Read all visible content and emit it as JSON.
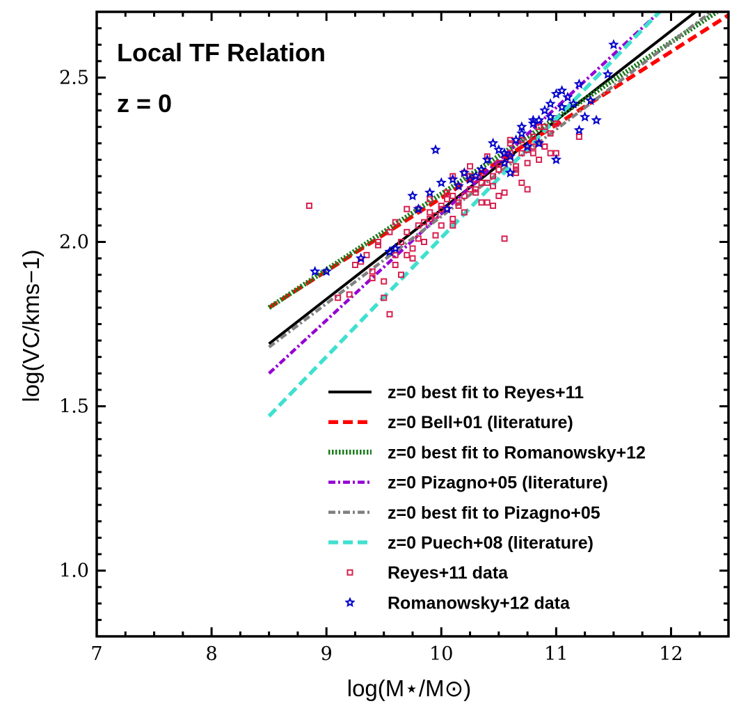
{
  "chart_data": {
    "type": "scatter",
    "title": "Local TF Relation",
    "subtitle": "z = 0",
    "xlabel": "log(M⋆/M⊙)",
    "ylabel": "log(VC/kms−1)",
    "xlim": [
      7,
      12.5
    ],
    "ylim": [
      0.8,
      2.7
    ],
    "xticks": [
      7,
      8,
      9,
      10,
      11,
      12
    ],
    "yticks": [
      1.0,
      1.5,
      2.0,
      2.5
    ],
    "xtick_labels": [
      "7",
      "8",
      "9",
      "10",
      "11",
      "12"
    ],
    "ytick_labels": [
      "1.0",
      "1.5",
      "2.0",
      "2.5"
    ],
    "legend_position": "lower-right",
    "lines": [
      {
        "name": "z=0 best fit to Reyes+11",
        "color": "#000000",
        "style": "solid",
        "x": [
          8.5,
          12.25
        ],
        "y": [
          1.69,
          2.71
        ]
      },
      {
        "name": "z=0 Bell+01 (literature)",
        "color": "#ff0000",
        "style": "dashed",
        "x": [
          8.5,
          12.5
        ],
        "y": [
          1.8,
          2.69
        ]
      },
      {
        "name": "z=0 best fit to Romanowsky+12",
        "color": "#1a7a1a",
        "style": "dotted",
        "x": [
          8.5,
          12.4
        ],
        "y": [
          1.8,
          2.7
        ]
      },
      {
        "name": "z=0 Pizagno+05 (literature)",
        "color": "#9400d3",
        "style": "dashdot",
        "x": [
          8.5,
          11.9
        ],
        "y": [
          1.6,
          2.7
        ]
      },
      {
        "name": "z=0 best fit to Pizagno+05",
        "color": "#808080",
        "style": "dashdot",
        "x": [
          8.5,
          12.35
        ],
        "y": [
          1.68,
          2.7
        ]
      },
      {
        "name": "z=0 Puech+08 (literature)",
        "color": "#40e0d0",
        "style": "dashed",
        "x": [
          8.5,
          11.9
        ],
        "y": [
          1.47,
          2.7
        ]
      }
    ],
    "series": [
      {
        "name": "Reyes+11 data",
        "marker": "square",
        "color": "#d6204f",
        "x": [
          8.85,
          9.1,
          9.2,
          9.3,
          9.4,
          9.5,
          9.55,
          9.6,
          9.65,
          9.7,
          9.75,
          9.8,
          9.85,
          9.9,
          9.95,
          10.0,
          10.05,
          10.1,
          10.15,
          10.2,
          10.25,
          10.3,
          10.35,
          10.4,
          10.45,
          10.5,
          10.55,
          10.6,
          10.65,
          10.7,
          10.75,
          10.8,
          10.85,
          10.9,
          10.95,
          11.0,
          9.35,
          9.45,
          9.6,
          9.7,
          9.8,
          9.9,
          10.0,
          10.1,
          10.2,
          10.3,
          10.4,
          10.5,
          10.6,
          10.7,
          10.8,
          10.9,
          9.5,
          9.75,
          9.95,
          10.15,
          10.35,
          10.55,
          10.75,
          9.65,
          9.85,
          10.05,
          10.25,
          10.45,
          10.65,
          10.85,
          10.0,
          10.2,
          10.4,
          10.6,
          10.8,
          11.2,
          9.4,
          9.6,
          10.1,
          10.3,
          10.5,
          10.7,
          10.9,
          9.55,
          9.9,
          10.1,
          10.35,
          10.6,
          10.75,
          10.95,
          9.8,
          10.25,
          10.5,
          9.7,
          10.05,
          10.45,
          10.85,
          9.25,
          9.45,
          10.15,
          10.55,
          10.65,
          11.0
        ],
        "y": [
          2.11,
          1.83,
          1.84,
          1.94,
          1.89,
          1.83,
          1.78,
          1.96,
          1.9,
          2.1,
          1.95,
          2.05,
          2.0,
          2.07,
          2.02,
          2.1,
          2.13,
          2.05,
          2.17,
          2.14,
          2.2,
          2.16,
          2.21,
          2.12,
          2.17,
          2.24,
          2.15,
          2.27,
          2.22,
          2.31,
          2.24,
          2.27,
          2.35,
          2.29,
          2.33,
          2.36,
          1.96,
          1.99,
          2.06,
          2.03,
          2.1,
          2.13,
          2.11,
          2.14,
          2.21,
          2.19,
          2.26,
          2.22,
          2.3,
          2.27,
          2.32,
          2.35,
          1.88,
          1.98,
          2.08,
          2.12,
          2.18,
          2.24,
          2.28,
          2.0,
          2.06,
          2.1,
          2.16,
          2.2,
          2.23,
          2.3,
          2.05,
          2.09,
          2.18,
          2.25,
          2.29,
          2.32,
          1.91,
          1.93,
          2.07,
          2.15,
          2.22,
          2.18,
          2.29,
          2.03,
          2.09,
          2.2,
          2.12,
          2.31,
          2.16,
          2.27,
          2.01,
          2.23,
          2.14,
          1.96,
          2.15,
          2.11,
          2.25,
          1.93,
          2.0,
          2.11,
          2.01,
          2.21,
          2.27
        ]
      },
      {
        "name": "Romanowsky+12 data",
        "marker": "star",
        "color": "#0000cc",
        "x": [
          8.9,
          9.0,
          9.3,
          9.55,
          9.6,
          9.8,
          9.9,
          9.95,
          10.0,
          10.05,
          10.1,
          10.15,
          10.2,
          10.25,
          10.3,
          10.4,
          10.45,
          10.5,
          10.55,
          10.6,
          10.65,
          10.7,
          10.75,
          10.8,
          10.85,
          10.9,
          10.95,
          11.0,
          11.05,
          11.1,
          11.15,
          11.2,
          11.25,
          11.3,
          11.35,
          11.45,
          11.5,
          9.75,
          10.35,
          10.55,
          10.7,
          10.85,
          10.95,
          11.05,
          11.2,
          10.6,
          10.8,
          11.0
        ],
        "y": [
          1.91,
          1.91,
          1.95,
          1.97,
          1.98,
          2.1,
          2.15,
          2.28,
          2.18,
          2.1,
          2.19,
          2.17,
          2.21,
          2.19,
          2.2,
          2.25,
          2.3,
          2.28,
          2.24,
          2.21,
          2.31,
          2.35,
          2.29,
          2.37,
          2.37,
          2.4,
          2.42,
          2.45,
          2.46,
          2.44,
          2.42,
          2.48,
          2.38,
          2.43,
          2.37,
          2.51,
          2.6,
          2.14,
          2.22,
          2.27,
          2.33,
          2.3,
          2.38,
          2.41,
          2.34,
          2.26,
          2.36,
          2.25
        ]
      }
    ]
  }
}
